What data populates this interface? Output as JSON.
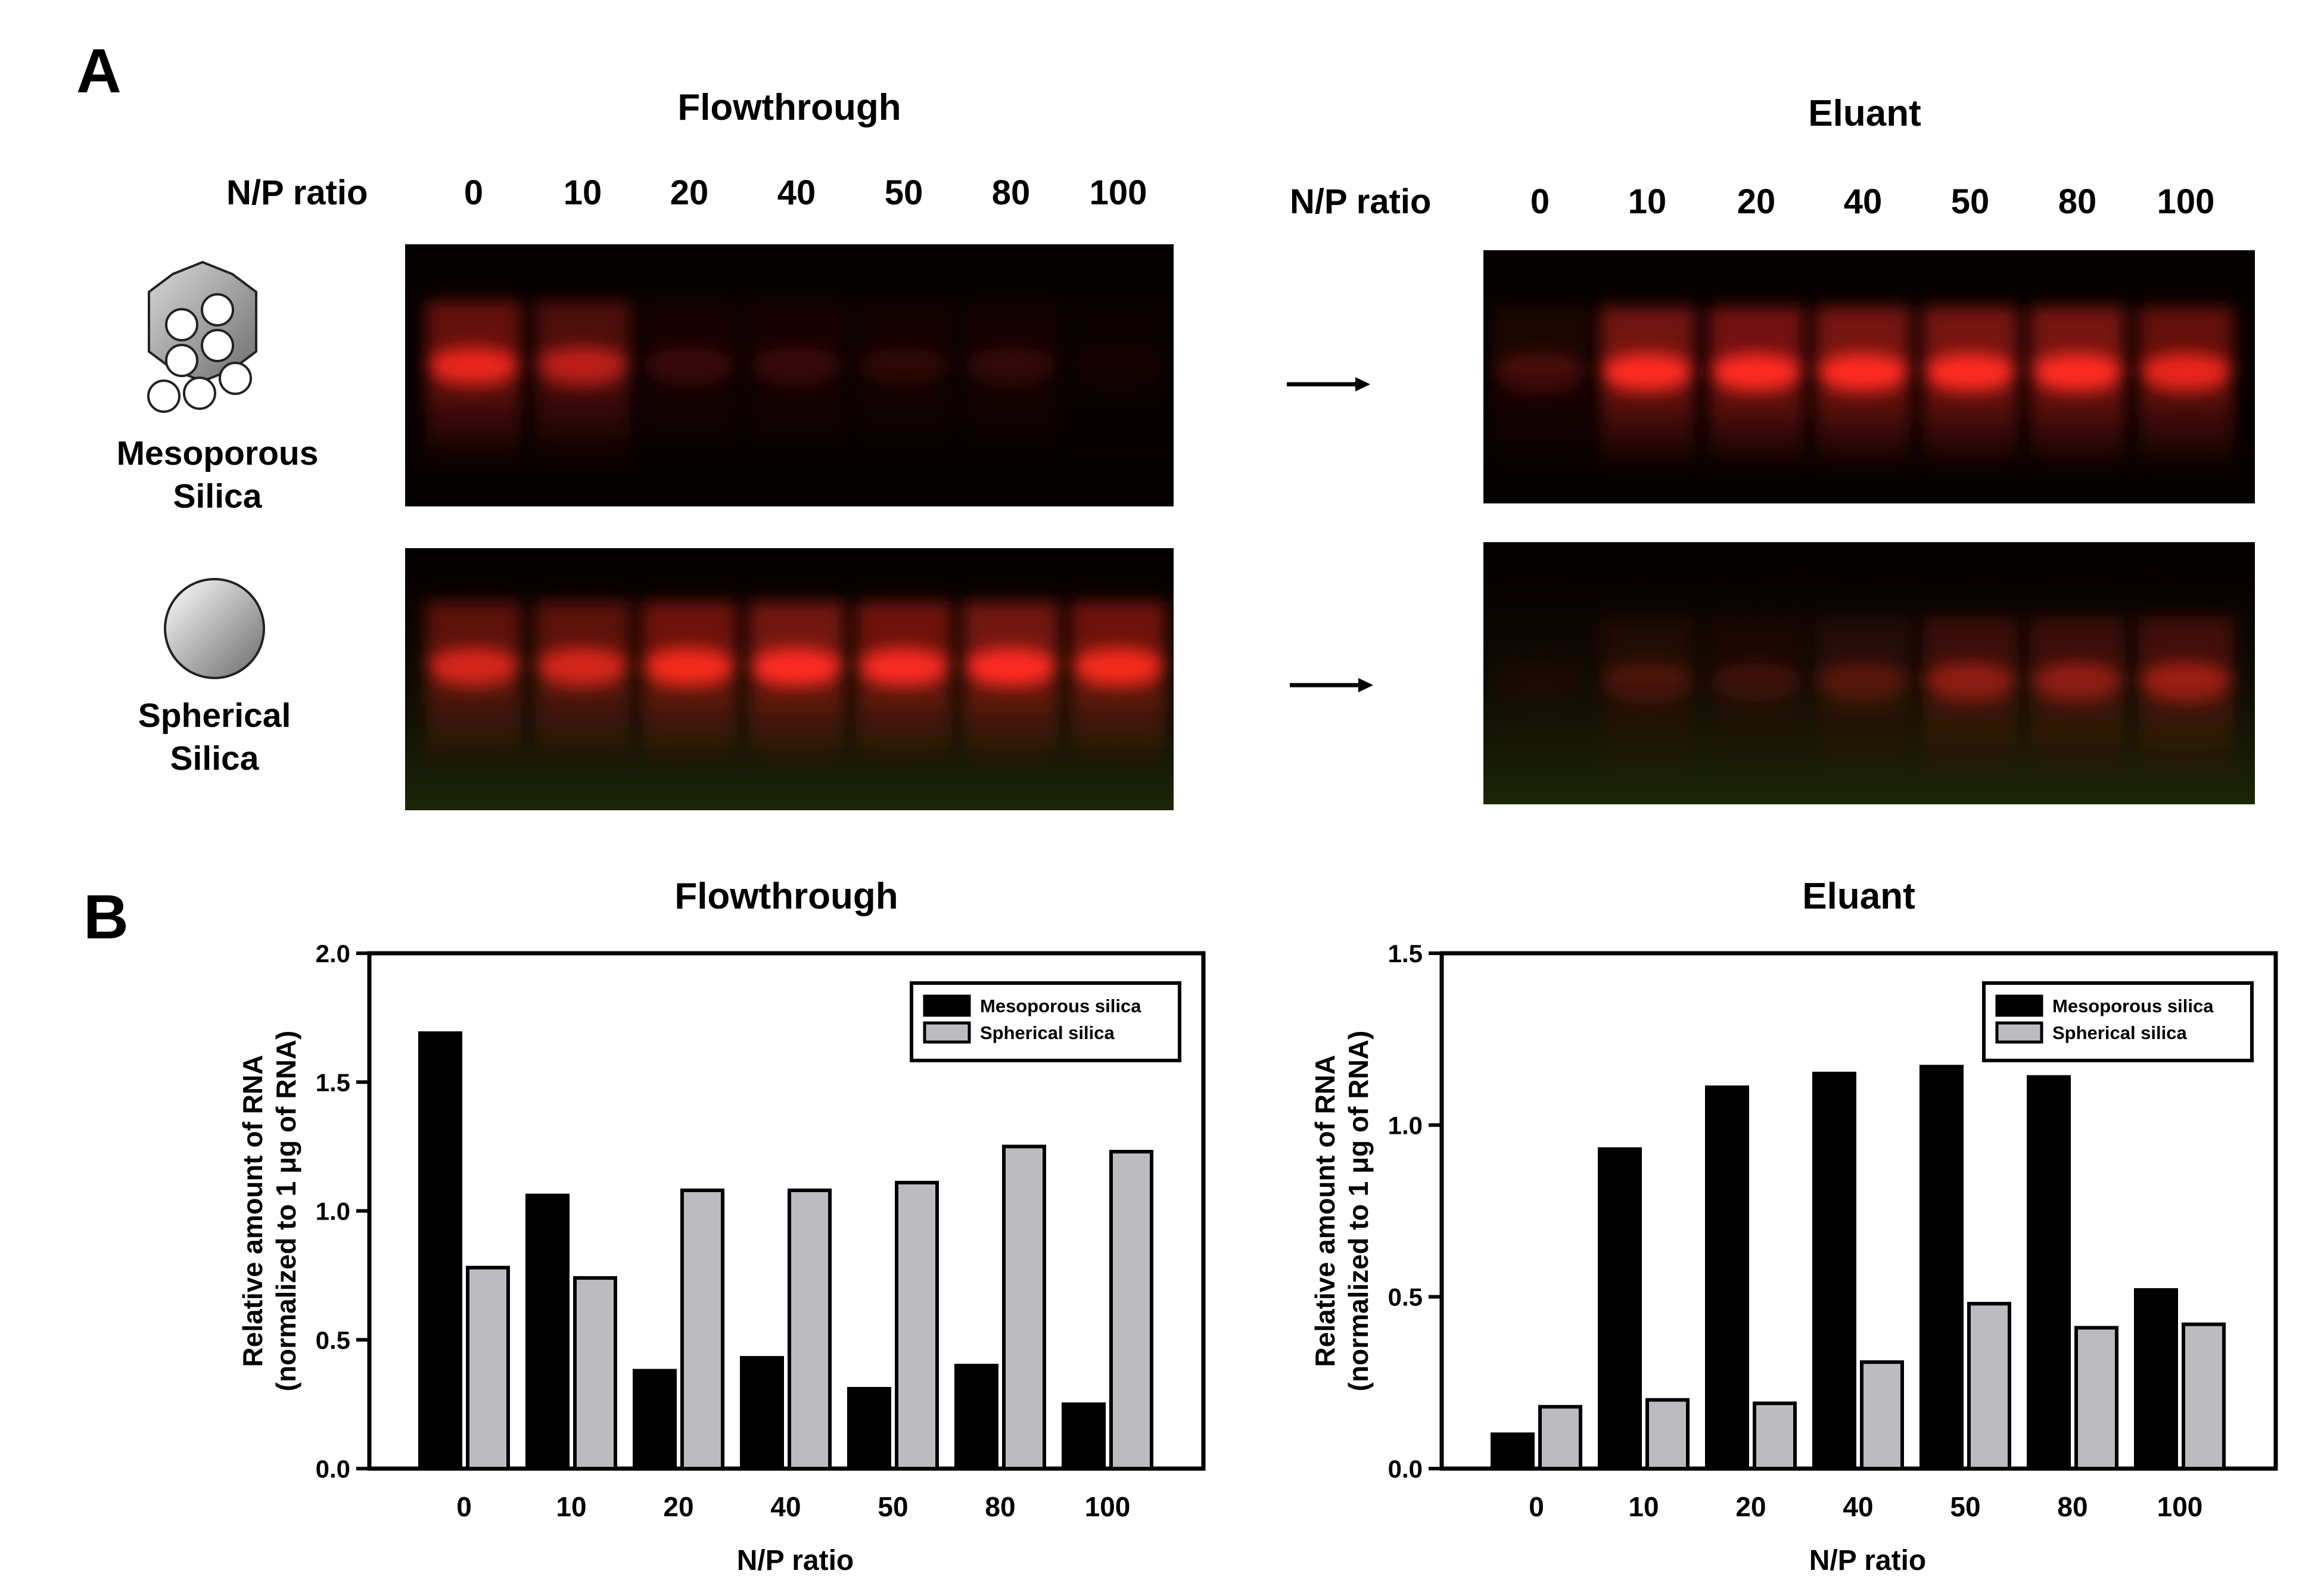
{
  "panel_a": {
    "letter": "A",
    "flowthrough_title": "Flowthrough",
    "eluant_title": "Eluant",
    "np_label": "N/P ratio",
    "lanes": [
      "0",
      "10",
      "20",
      "40",
      "50",
      "80",
      "100"
    ],
    "mesoporous_label": [
      "Mesoporous",
      "Silica"
    ],
    "spherical_label": [
      "Spherical",
      "Silica"
    ],
    "arrow_glyph": "→",
    "band_color": "#ff2a20",
    "gel_background": "#060101",
    "gel_intensity": {
      "flowthrough_mesoporous": [
        0.85,
        0.65,
        0.15,
        0.15,
        0.12,
        0.14,
        0.05
      ],
      "flowthrough_spherical": [
        0.75,
        0.75,
        0.9,
        0.95,
        0.92,
        0.95,
        0.9
      ],
      "eluant_mesoporous": [
        0.2,
        0.95,
        0.97,
        1.0,
        1.0,
        1.0,
        0.85
      ],
      "eluant_spherical": [
        0.05,
        0.2,
        0.15,
        0.25,
        0.45,
        0.45,
        0.5
      ]
    }
  },
  "panel_b": {
    "letter": "B"
  },
  "chart_data": [
    {
      "type": "bar",
      "title": "Flowthrough",
      "xlabel": "N/P ratio",
      "ylabel": [
        "Relative amount of RNA",
        "(normalized to 1 μg of RNA)"
      ],
      "categories": [
        "0",
        "10",
        "20",
        "40",
        "50",
        "80",
        "100"
      ],
      "ylim": [
        0,
        2.0
      ],
      "yticks": [
        "0.0",
        "0.5",
        "1.0",
        "1.5",
        "2.0"
      ],
      "legend_position": "top-right",
      "series": [
        {
          "name": "Mesoporous silica",
          "color": "#000000",
          "values": [
            1.69,
            1.06,
            0.38,
            0.43,
            0.31,
            0.4,
            0.25
          ]
        },
        {
          "name": "Spherical silica",
          "color": "#bcbcc0",
          "values": [
            0.78,
            0.74,
            1.08,
            1.08,
            1.11,
            1.25,
            1.23
          ]
        }
      ]
    },
    {
      "type": "bar",
      "title": "Eluant",
      "xlabel": "N/P ratio",
      "ylabel": [
        "Relative amount of RNA",
        "(normalized to 1 μg of RNA)"
      ],
      "categories": [
        "0",
        "10",
        "20",
        "40",
        "50",
        "80",
        "100"
      ],
      "ylim": [
        0,
        1.5
      ],
      "yticks": [
        "0.0",
        "0.5",
        "1.0",
        "1.5"
      ],
      "legend_position": "top-right",
      "series": [
        {
          "name": "Mesoporous silica",
          "color": "#000000",
          "values": [
            0.1,
            0.93,
            1.11,
            1.15,
            1.17,
            1.14,
            0.52
          ]
        },
        {
          "name": "Spherical silica",
          "color": "#bcbcc0",
          "values": [
            0.18,
            0.2,
            0.19,
            0.31,
            0.48,
            0.41,
            0.42
          ]
        }
      ]
    }
  ]
}
